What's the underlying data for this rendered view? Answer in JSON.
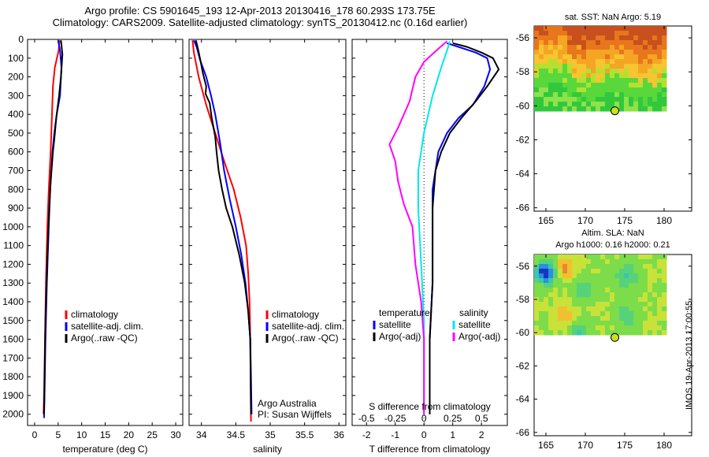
{
  "title": {
    "line1": "Argo profile: CS 5901645_193 12-Apr-2013 20130416_178 60.293S 173.75E",
    "line2": "Climatology: CARS2009. Satellite-adjusted climatology: synTS_20130412.nc (0.16d earlier)"
  },
  "stamp": "IMOS 19-Apr-2013 17:00:55",
  "colors": {
    "climatology": "#ff0000",
    "satellite": "#0000ff",
    "argo": "#000000",
    "salinity_satellite": "#00e8e8",
    "salinity_argo": "#ff00ff"
  },
  "chart_data": [
    {
      "type": "line",
      "id": "temperature",
      "xlabel": "temperature (deg C)",
      "ylabel": "",
      "xlim": [
        -1.5,
        31.5
      ],
      "ylim": [
        2060,
        0
      ],
      "x_ticks": [
        0,
        5,
        10,
        15,
        20,
        25,
        30
      ],
      "y_ticks": [
        0,
        100,
        200,
        300,
        400,
        500,
        600,
        700,
        800,
        900,
        1000,
        1100,
        1200,
        1300,
        1400,
        1500,
        1600,
        1700,
        1800,
        1900,
        2000
      ],
      "legend": [
        "climatology",
        "satellite-adj. clim.",
        "Argo(..raw -QC)"
      ],
      "legend_location": "lower-middle",
      "series": [
        {
          "name": "climatology",
          "color": "#ff0000",
          "points": [
            [
              5.3,
              5
            ],
            [
              5.1,
              60
            ],
            [
              4.3,
              150
            ],
            [
              3.9,
              250
            ],
            [
              3.7,
              400
            ],
            [
              3.4,
              600
            ],
            [
              3.0,
              800
            ],
            [
              2.7,
              1000
            ],
            [
              2.4,
              1300
            ],
            [
              2.2,
              1600
            ],
            [
              2.0,
              1900
            ],
            [
              1.9,
              2000
            ]
          ]
        },
        {
          "name": "satellite-adj. clim.",
          "color": "#0000ff",
          "points": [
            [
              5.0,
              5
            ],
            [
              5.4,
              60
            ],
            [
              5.7,
              150
            ],
            [
              5.4,
              300
            ],
            [
              4.7,
              400
            ],
            [
              4.2,
              500
            ],
            [
              3.8,
              600
            ],
            [
              3.3,
              800
            ],
            [
              3.0,
              1000
            ],
            [
              2.6,
              1300
            ],
            [
              2.3,
              1600
            ],
            [
              2.1,
              1900
            ],
            [
              2.0,
              2020
            ]
          ]
        },
        {
          "name": "Argo(..raw -QC)",
          "color": "#000000",
          "points": [
            [
              5.6,
              5
            ],
            [
              5.9,
              80
            ],
            [
              5.6,
              200
            ],
            [
              5.2,
              300
            ],
            [
              4.6,
              420
            ],
            [
              4.2,
              530
            ],
            [
              3.9,
              600
            ],
            [
              3.4,
              760
            ],
            [
              3.1,
              900
            ],
            [
              2.7,
              1150
            ],
            [
              2.3,
              1500
            ],
            [
              2.0,
              2000
            ]
          ]
        }
      ]
    },
    {
      "type": "line",
      "id": "salinity",
      "xlabel": "salinity",
      "xlim": [
        33.82,
        36.1
      ],
      "ylim": [
        2060,
        0
      ],
      "x_ticks": [
        34,
        34.5,
        35,
        35.5,
        36
      ],
      "legend": [
        "climatology",
        "satellite-adj. clim.",
        "Argo(..raw -QC)"
      ],
      "annotation_lines": [
        "Argo Australia",
        "PI: Susan Wijffels"
      ],
      "series": [
        {
          "name": "climatology",
          "color": "#ff0000",
          "points": [
            [
              33.87,
              5
            ],
            [
              33.89,
              70
            ],
            [
              33.96,
              200
            ],
            [
              34.07,
              350
            ],
            [
              34.2,
              500
            ],
            [
              34.33,
              650
            ],
            [
              34.47,
              800
            ],
            [
              34.57,
              950
            ],
            [
              34.65,
              1100
            ],
            [
              34.68,
              1250
            ],
            [
              34.7,
              1400
            ],
            [
              34.71,
              1600
            ],
            [
              34.72,
              2040
            ]
          ]
        },
        {
          "name": "satellite-adj. clim.",
          "color": "#0000ff",
          "points": [
            [
              33.89,
              5
            ],
            [
              33.93,
              40
            ],
            [
              33.98,
              110
            ],
            [
              34.07,
              200
            ],
            [
              34.14,
              300
            ],
            [
              34.2,
              400
            ],
            [
              34.27,
              550
            ],
            [
              34.33,
              700
            ],
            [
              34.41,
              850
            ],
            [
              34.5,
              1000
            ],
            [
              34.58,
              1150
            ],
            [
              34.64,
              1300
            ],
            [
              34.68,
              1450
            ],
            [
              34.71,
              1600
            ],
            [
              34.72,
              1800
            ],
            [
              34.73,
              2000
            ]
          ]
        },
        {
          "name": "Argo(..raw -QC)",
          "color": "#000000",
          "points": [
            [
              33.92,
              5
            ],
            [
              33.95,
              50
            ],
            [
              33.99,
              120
            ],
            [
              34.02,
              180
            ],
            [
              34.07,
              250
            ],
            [
              34.06,
              290
            ],
            [
              34.12,
              340
            ],
            [
              34.15,
              420
            ],
            [
              34.2,
              520
            ],
            [
              34.22,
              600
            ],
            [
              34.25,
              700
            ],
            [
              34.3,
              800
            ],
            [
              34.36,
              900
            ],
            [
              34.45,
              1000
            ],
            [
              34.55,
              1150
            ],
            [
              34.63,
              1300
            ],
            [
              34.68,
              1450
            ],
            [
              34.71,
              1600
            ],
            [
              34.72,
              2000
            ]
          ]
        }
      ]
    },
    {
      "type": "line",
      "id": "difference",
      "xlabel": "T difference from climatology",
      "x2label": "S difference from climatology",
      "xlim": [
        -2.5,
        2.9
      ],
      "ylim": [
        2060,
        0
      ],
      "x_ticks": [
        -2,
        -1,
        0,
        1,
        2
      ],
      "x2_ticks": [
        {
          "label": "-0.5",
          "x": -2
        },
        {
          "label": "-0.25",
          "x": -1
        },
        {
          "label": "0",
          "x": 0
        },
        {
          "label": "0.25",
          "x": 1
        },
        {
          "label": "0.5",
          "x": 2
        }
      ],
      "legend_groups": [
        {
          "title": "temperature",
          "entries": [
            "satellite",
            "Argo(-adj)"
          ]
        },
        {
          "title": "salinity",
          "entries": [
            "satellite",
            "Argo(-adj)"
          ]
        }
      ],
      "series": [
        {
          "name": "temperature satellite",
          "color": "#0000ff",
          "points": [
            [
              0.8,
              20
            ],
            [
              1.2,
              40
            ],
            [
              1.8,
              70
            ],
            [
              2.2,
              100
            ],
            [
              2.3,
              160
            ],
            [
              2.1,
              250
            ],
            [
              1.7,
              350
            ],
            [
              1.2,
              420
            ],
            [
              0.8,
              500
            ],
            [
              0.5,
              600
            ],
            [
              0.4,
              700
            ],
            [
              0.3,
              800
            ],
            [
              0.3,
              1000
            ],
            [
              0.3,
              1300
            ],
            [
              0.2,
              1600
            ],
            [
              0.2,
              2000
            ]
          ]
        },
        {
          "name": "temperature Argo(-adj)",
          "color": "#000000",
          "points": [
            [
              1.0,
              20
            ],
            [
              1.5,
              40
            ],
            [
              2.0,
              70
            ],
            [
              2.4,
              100
            ],
            [
              2.6,
              160
            ],
            [
              2.2,
              250
            ],
            [
              1.8,
              330
            ],
            [
              1.3,
              420
            ],
            [
              0.9,
              500
            ],
            [
              0.6,
              600
            ],
            [
              0.4,
              700
            ],
            [
              0.3,
              900
            ],
            [
              0.3,
              1300
            ],
            [
              0.2,
              1600
            ],
            [
              0.2,
              2000
            ]
          ]
        },
        {
          "name": "salinity satellite",
          "color": "#00e8e8",
          "points": [
            [
              0.9,
              10
            ],
            [
              0.8,
              60
            ],
            [
              0.6,
              150
            ],
            [
              0.3,
              300
            ],
            [
              0.0,
              500
            ],
            [
              -0.2,
              700
            ],
            [
              -0.2,
              900
            ],
            [
              -0.1,
              1200
            ],
            [
              0.0,
              1500
            ],
            [
              0.0,
              2000
            ]
          ]
        },
        {
          "name": "salinity Argo(-adj)",
          "color": "#ff00ff",
          "points": [
            [
              0.8,
              10
            ],
            [
              0.5,
              50
            ],
            [
              0.0,
              120
            ],
            [
              -0.3,
              200
            ],
            [
              -0.5,
              330
            ],
            [
              -0.9,
              470
            ],
            [
              -1.2,
              560
            ],
            [
              -1.0,
              650
            ],
            [
              -0.9,
              760
            ],
            [
              -0.7,
              880
            ],
            [
              -0.4,
              1000
            ],
            [
              -0.3,
              1200
            ],
            [
              -0.1,
              1400
            ],
            [
              0.0,
              1600
            ],
            [
              0.0,
              2000
            ]
          ]
        }
      ]
    },
    {
      "type": "heatmap",
      "id": "sst-map",
      "title": "sat. SST: NaN Argo: 5.19",
      "xlim": [
        163.5,
        183.5
      ],
      "ylim": [
        -66.2,
        -55.3
      ],
      "x_ticks": [
        165,
        170,
        175,
        180
      ],
      "y_ticks": [
        -56,
        -58,
        -60,
        -62,
        -64,
        -66
      ],
      "data_extent": {
        "x": [
          163.5,
          180
        ],
        "y": [
          -60.1,
          -55.3
        ]
      },
      "argo_point": {
        "lon": 173.75,
        "lat": -60.29
      }
    },
    {
      "type": "heatmap",
      "id": "sla-map",
      "title": "Altim. SLA: NaN",
      "subtitle": "Argo h1000: 0.16 h2000: 0.21",
      "xlim": [
        163.5,
        183.5
      ],
      "ylim": [
        -66.2,
        -55.3
      ],
      "x_ticks": [
        165,
        170,
        175,
        180
      ],
      "y_ticks": [
        -56,
        -58,
        -60,
        -62,
        -64,
        -66
      ],
      "data_extent": {
        "x": [
          163.5,
          180
        ],
        "y": [
          -60.1,
          -55.3
        ]
      },
      "argo_point": {
        "lon": 173.75,
        "lat": -60.29
      }
    }
  ]
}
